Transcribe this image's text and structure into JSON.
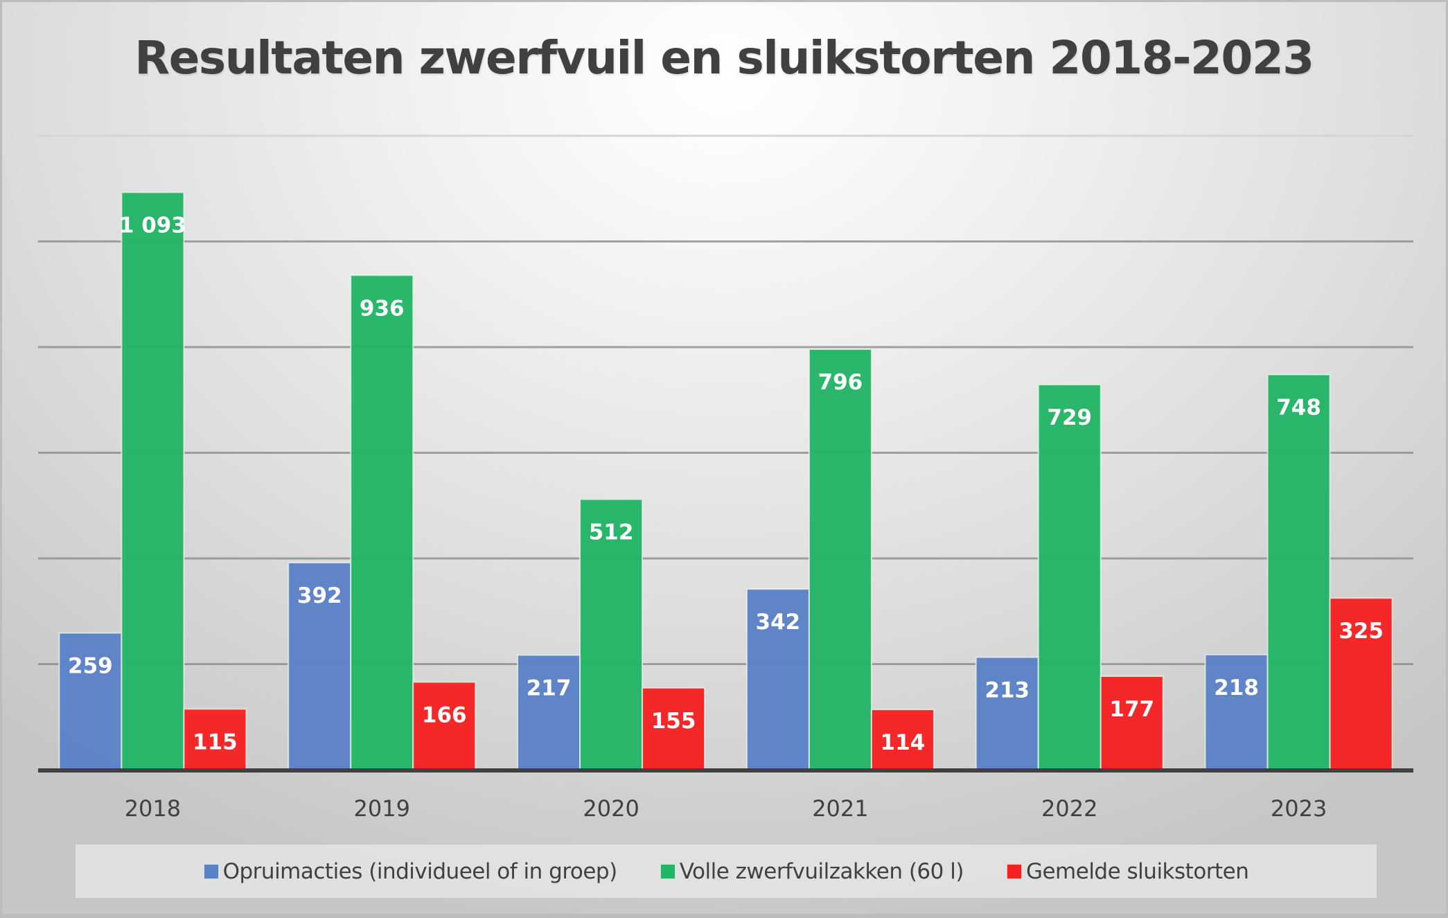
{
  "chart_data": {
    "type": "bar",
    "title": "Resultaten zwerfvuil en sluikstorten 2018-2023",
    "xlabel": "",
    "ylabel": "",
    "categories": [
      "2018",
      "2019",
      "2020",
      "2021",
      "2022",
      "2023"
    ],
    "ylim": [
      0,
      1200
    ],
    "ytick_step": 200,
    "y_tick_labels_visible": false,
    "grid": true,
    "legend_position": "bottom",
    "series": [
      {
        "name": "Opruimacties (individueel of in groep)",
        "color": "#5b81c7",
        "values": [
          259,
          392,
          217,
          342,
          213,
          218
        ],
        "labels": [
          "259",
          "392",
          "217",
          "342",
          "213",
          "218"
        ]
      },
      {
        "name": "Volle zwerfvuilzakken (60 l)",
        "color": "#23b566",
        "values": [
          1093,
          936,
          512,
          796,
          729,
          748
        ],
        "labels": [
          "1 093",
          "936",
          "512",
          "796",
          "729",
          "748"
        ]
      },
      {
        "name": "Gemelde sluikstorten",
        "color": "#f52222",
        "values": [
          115,
          166,
          155,
          114,
          177,
          325
        ],
        "labels": [
          "115",
          "166",
          "155",
          "114",
          "177",
          "325"
        ]
      }
    ]
  }
}
